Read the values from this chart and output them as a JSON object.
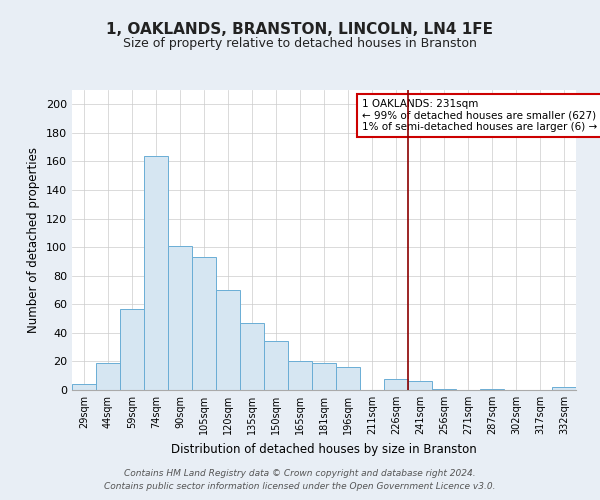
{
  "title": "1, OAKLANDS, BRANSTON, LINCOLN, LN4 1FE",
  "subtitle": "Size of property relative to detached houses in Branston",
  "xlabel": "Distribution of detached houses by size in Branston",
  "ylabel": "Number of detached properties",
  "bar_labels": [
    "29sqm",
    "44sqm",
    "59sqm",
    "74sqm",
    "90sqm",
    "105sqm",
    "120sqm",
    "135sqm",
    "150sqm",
    "165sqm",
    "181sqm",
    "196sqm",
    "211sqm",
    "226sqm",
    "241sqm",
    "256sqm",
    "271sqm",
    "287sqm",
    "302sqm",
    "317sqm",
    "332sqm"
  ],
  "bar_heights": [
    4,
    19,
    57,
    164,
    101,
    93,
    70,
    47,
    34,
    20,
    19,
    16,
    0,
    8,
    6,
    1,
    0,
    1,
    0,
    0,
    2
  ],
  "bar_color": "#d6e6f2",
  "bar_edge_color": "#6aadd5",
  "vline_color": "#8b0000",
  "annotation_text_line1": "1 OAKLANDS: 231sqm",
  "annotation_text_line2": "← 99% of detached houses are smaller (627)",
  "annotation_text_line3": "1% of semi-detached houses are larger (6) →",
  "ylim": [
    0,
    210
  ],
  "yticks": [
    0,
    20,
    40,
    60,
    80,
    100,
    120,
    140,
    160,
    180,
    200
  ],
  "footer_line1": "Contains HM Land Registry data © Crown copyright and database right 2024.",
  "footer_line2": "Contains public sector information licensed under the Open Government Licence v3.0.",
  "grid_color": "#cccccc",
  "plot_bg_color": "#ffffff",
  "fig_bg_color": "#e8eef5",
  "vline_bar_index": 14
}
